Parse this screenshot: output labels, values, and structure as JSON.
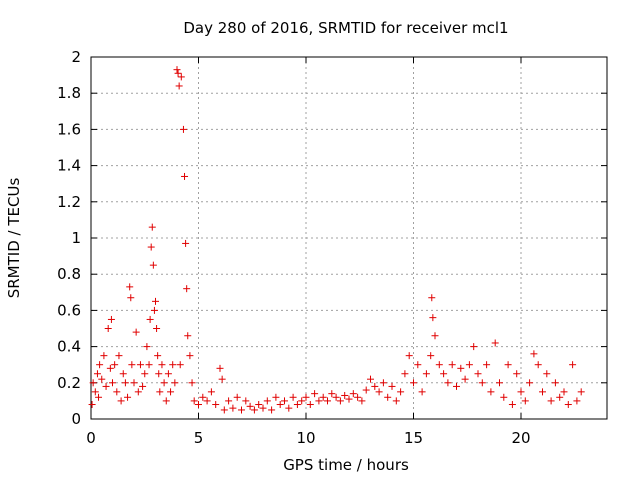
{
  "chart_data": {
    "type": "scatter",
    "title": "Day 280 of 2016, SRMTID for receiver mcl1",
    "xlabel": "GPS time / hours",
    "ylabel": "SRMTID / TECUs",
    "xlim": [
      0,
      24
    ],
    "ylim": [
      0,
      2
    ],
    "x_ticks": [
      0,
      5,
      10,
      15,
      20
    ],
    "y_ticks": [
      0,
      0.2,
      0.4,
      0.6,
      0.8,
      1,
      1.2,
      1.4,
      1.6,
      1.8,
      2
    ],
    "x_tick_labels": [
      "0",
      "5",
      "10",
      "15",
      "20"
    ],
    "y_tick_labels": [
      "0",
      "0.2",
      "0.4",
      "0.6",
      "0.8",
      "1",
      "1.2",
      "1.4",
      "1.6",
      "1.8",
      "2"
    ],
    "grid": true,
    "marker": "+",
    "color": "#e00000",
    "series": [
      {
        "name": "mcl1",
        "x": [
          0.05,
          0.1,
          0.2,
          0.3,
          0.35,
          0.4,
          0.5,
          0.6,
          0.7,
          0.8,
          0.9,
          0.95,
          1.0,
          1.1,
          1.2,
          1.3,
          1.4,
          1.5,
          1.6,
          1.7,
          1.8,
          1.85,
          1.9,
          2.0,
          2.1,
          2.2,
          2.3,
          2.4,
          2.5,
          2.6,
          2.7,
          2.75,
          2.8,
          2.85,
          2.9,
          2.95,
          3.0,
          3.05,
          3.1,
          3.15,
          3.2,
          3.3,
          3.4,
          3.5,
          3.6,
          3.7,
          3.8,
          3.9,
          4.0,
          4.05,
          4.1,
          4.15,
          4.2,
          4.3,
          4.35,
          4.4,
          4.45,
          4.5,
          4.6,
          4.7,
          4.8,
          5.0,
          5.2,
          5.4,
          5.6,
          5.8,
          6.0,
          6.1,
          6.2,
          6.4,
          6.6,
          6.8,
          7.0,
          7.2,
          7.4,
          7.6,
          7.8,
          8.0,
          8.2,
          8.4,
          8.6,
          8.8,
          9.0,
          9.2,
          9.4,
          9.6,
          9.8,
          10.0,
          10.2,
          10.4,
          10.6,
          10.8,
          11.0,
          11.2,
          11.4,
          11.6,
          11.8,
          12.0,
          12.2,
          12.4,
          12.6,
          12.8,
          13.0,
          13.2,
          13.4,
          13.6,
          13.8,
          14.0,
          14.2,
          14.4,
          14.6,
          14.8,
          15.0,
          15.2,
          15.4,
          15.6,
          15.8,
          15.85,
          15.9,
          16.0,
          16.2,
          16.4,
          16.6,
          16.8,
          17.0,
          17.2,
          17.4,
          17.6,
          17.8,
          18.0,
          18.2,
          18.4,
          18.6,
          18.8,
          19.0,
          19.2,
          19.4,
          19.6,
          19.8,
          20.0,
          20.2,
          20.4,
          20.6,
          20.8,
          21.0,
          21.2,
          21.4,
          21.6,
          21.8,
          22.0,
          22.2,
          22.4,
          22.6,
          22.8
        ],
        "y": [
          0.08,
          0.2,
          0.15,
          0.25,
          0.12,
          0.3,
          0.22,
          0.35,
          0.18,
          0.5,
          0.28,
          0.55,
          0.2,
          0.3,
          0.15,
          0.35,
          0.1,
          0.25,
          0.2,
          0.12,
          0.73,
          0.67,
          0.3,
          0.2,
          0.48,
          0.15,
          0.3,
          0.18,
          0.25,
          0.4,
          0.3,
          0.55,
          0.95,
          1.06,
          0.85,
          0.6,
          0.65,
          0.5,
          0.35,
          0.25,
          0.15,
          0.3,
          0.2,
          0.1,
          0.25,
          0.15,
          0.3,
          0.2,
          1.93,
          1.91,
          1.84,
          0.3,
          1.89,
          1.6,
          1.34,
          0.97,
          0.72,
          0.46,
          0.35,
          0.2,
          0.1,
          0.08,
          0.12,
          0.1,
          0.15,
          0.08,
          0.28,
          0.22,
          0.05,
          0.1,
          0.06,
          0.12,
          0.05,
          0.1,
          0.07,
          0.05,
          0.08,
          0.06,
          0.1,
          0.05,
          0.12,
          0.08,
          0.1,
          0.06,
          0.12,
          0.08,
          0.1,
          0.12,
          0.08,
          0.14,
          0.1,
          0.12,
          0.1,
          0.14,
          0.12,
          0.1,
          0.13,
          0.11,
          0.14,
          0.12,
          0.1,
          0.16,
          0.22,
          0.18,
          0.15,
          0.2,
          0.12,
          0.18,
          0.1,
          0.15,
          0.25,
          0.35,
          0.2,
          0.3,
          0.15,
          0.25,
          0.35,
          0.67,
          0.56,
          0.46,
          0.3,
          0.25,
          0.2,
          0.3,
          0.18,
          0.28,
          0.22,
          0.3,
          0.4,
          0.25,
          0.2,
          0.3,
          0.15,
          0.42,
          0.2,
          0.12,
          0.3,
          0.08,
          0.25,
          0.15,
          0.1,
          0.2,
          0.36,
          0.3,
          0.15,
          0.25,
          0.1,
          0.2,
          0.12,
          0.15,
          0.08,
          0.3,
          0.1,
          0.15
        ]
      }
    ]
  }
}
